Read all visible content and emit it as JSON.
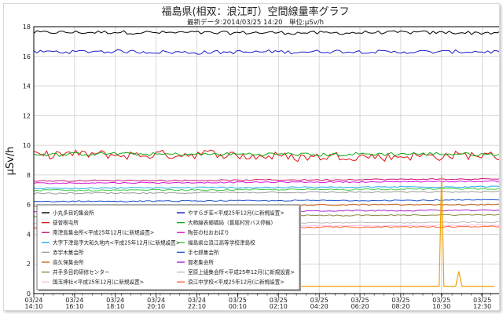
{
  "chart_data": {
    "type": "line",
    "title": "福島県(相双：浪江町）空間線量率グラフ",
    "subtitle": "最新データ:2014/03/25 14:20　単位:μSv/h",
    "ylabel": "μSv/h",
    "xlabel": "",
    "ylim": [
      0,
      18
    ],
    "y_ticks": [
      0,
      2,
      4,
      6,
      8,
      10,
      12,
      14,
      16,
      18
    ],
    "x_range": [
      "03/24 14:10",
      "03/25 14:20"
    ],
    "x_tick_labels": [
      {
        "date": "03/24",
        "time": "14:10"
      },
      {
        "date": "03/24",
        "time": "16:10"
      },
      {
        "date": "03/24",
        "time": "18:10"
      },
      {
        "date": "03/24",
        "time": "20:10"
      },
      {
        "date": "03/24",
        "time": "22:10"
      },
      {
        "date": "03/25",
        "time": "00:10"
      },
      {
        "date": "03/25",
        "time": "02:10"
      },
      {
        "date": "03/25",
        "time": "04:20"
      },
      {
        "date": "03/25",
        "time": "06:20"
      },
      {
        "date": "03/25",
        "time": "08:20"
      },
      {
        "date": "03/25",
        "time": "10:30"
      },
      {
        "date": "03/25",
        "time": "12:30"
      }
    ],
    "grid": true,
    "legend_position": "bottom-left",
    "series": [
      {
        "name": "小丸多目的集会所",
        "color": "#000000",
        "level": 17.6,
        "noise": 0.12
      },
      {
        "name": "やすらぎ荘<平成25年12月(に新規設置>",
        "color": "#1a1acc",
        "level": 16.3,
        "noise": 0.12
      },
      {
        "name": "昼曽根屯所",
        "color": "#dd1111",
        "level": 9.3,
        "noise": 0.3
      },
      {
        "name": "大柿線表郷橋局（葛尾村営バス停輸）",
        "color": "#11aa11",
        "level": 9.4,
        "noise": 0.12
      },
      {
        "name": "南津島集会所<平成25年12月(に新規設置>",
        "color": "#d01070",
        "level": 7.6,
        "noise": 0.04
      },
      {
        "name": "陶芸の杜おおぼり",
        "color": "#dd11dd",
        "level": 7.45,
        "noise": 0.04
      },
      {
        "name": "大字下津島字大和久地内<平成25年12月(に新規設置>",
        "color": "#22aaee",
        "level": 7.1,
        "noise": 0.05
      },
      {
        "name": "福島県立浪江高等学校津島校",
        "color": "#44cc44",
        "level": 6.95,
        "noise": 0.05
      },
      {
        "name": "赤宇木集会所",
        "color": "#999999",
        "level": 6.75,
        "noise": 0.05
      },
      {
        "name": "手七郎集会所",
        "color": "#2255cc",
        "level": 6.2,
        "noise": 0.04
      },
      {
        "name": "高久保集会所",
        "color": "#cc6622",
        "level": 5.9,
        "noise": 0.04
      },
      {
        "name": "賀老集会所",
        "color": "#aa22cc",
        "level": 5.5,
        "noise": 0.04
      },
      {
        "name": "井手多目的研修センター",
        "color": "#888844",
        "level": 5.2,
        "noise": 0.04
      },
      {
        "name": "室原上組集会所<平成25年12月(に新規設置>",
        "color": "#bbbbbb",
        "level": 4.7,
        "noise": 0.04
      },
      {
        "name": "国玉神社<平成25年12月(に新規設置>",
        "color": "#ffbbdd",
        "level": 4.5,
        "noise": 0.04
      },
      {
        "name": "浪江中学校<平成25年12月(に新規設置>",
        "color": "#ff6633",
        "level": 4.4,
        "noise": 0.04
      }
    ],
    "orange_series": {
      "color": "#f0a000",
      "baseline": 0.5,
      "peak_time": "03/25 10:30",
      "peak_value": 8.0,
      "second_peak_value": 1.5
    }
  }
}
